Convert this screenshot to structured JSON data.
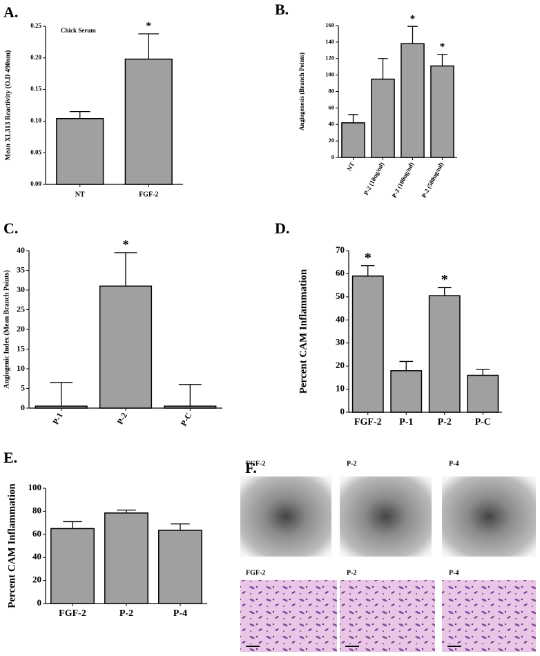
{
  "chart_data": [
    {
      "type": "bar",
      "panel": "A.",
      "note": "Chick Serum",
      "y_label": "Mean XL313 Reactivity (O.D 490nm)",
      "categories": [
        "NT",
        "FGF-2"
      ],
      "values": [
        0.104,
        0.198
      ],
      "errors": [
        0.011,
        0.04
      ],
      "annotations": [
        null,
        "*"
      ],
      "color": "#a0a0a0",
      "ylim": [
        0,
        0.25
      ],
      "yticks": [
        {
          "value": 0,
          "label": "0.00"
        },
        {
          "value": 0.05,
          "label": "0.05"
        },
        {
          "value": 0.1,
          "label": "0.10"
        },
        {
          "value": 0.15,
          "label": "0.15"
        },
        {
          "value": 0.2,
          "label": "0.20"
        },
        {
          "value": 0.25,
          "label": "0.25"
        }
      ]
    },
    {
      "type": "bar",
      "panel": "B.",
      "y_label": "Angiogenesis (Branch Points)",
      "categories": [
        "NT",
        "P-2 (10ng/ml)",
        "P-2 (100ng/ml)",
        "P-2 (500ng/ml)"
      ],
      "values": [
        42,
        95,
        138,
        111
      ],
      "errors": [
        10,
        25,
        21,
        14
      ],
      "annotations": [
        null,
        null,
        "*",
        "*"
      ],
      "color": "#a0a0a0",
      "ylim": [
        0,
        160
      ],
      "yticks": [
        0,
        20,
        40,
        60,
        80,
        100,
        120,
        140,
        160
      ]
    },
    {
      "type": "bar",
      "panel": "C.",
      "y_label": "Angiogenic Index (Mean Branch Points)",
      "categories": [
        "P-1",
        "P-2",
        "P-C"
      ],
      "values": [
        0.5,
        31,
        0.5
      ],
      "errors": [
        6,
        8.5,
        5.5
      ],
      "annotations": [
        null,
        "*",
        null
      ],
      "color": "#a0a0a0",
      "ylim": [
        0,
        40
      ],
      "yticks": [
        0,
        5,
        10,
        15,
        20,
        25,
        30,
        35,
        40
      ]
    },
    {
      "type": "bar",
      "panel": "D.",
      "y_label": "Percent CAM Inflammation",
      "categories": [
        "FGF-2",
        "P-1",
        "P-2",
        "P-C"
      ],
      "values": [
        59,
        18,
        50.5,
        16
      ],
      "errors": [
        4.5,
        4,
        3.5,
        2.5
      ],
      "annotations": [
        "*",
        null,
        "*",
        null
      ],
      "color": "#a0a0a0",
      "ylim": [
        0,
        70
      ],
      "yticks": [
        0,
        10,
        20,
        30,
        40,
        50,
        60,
        70
      ]
    },
    {
      "type": "bar",
      "panel": "E.",
      "y_label": "Percent CAM Inflammation",
      "categories": [
        "FGF-2",
        "P-2",
        "P-4"
      ],
      "values": [
        65,
        78.5,
        63.5
      ],
      "errors": [
        6,
        2.5,
        5.5
      ],
      "annotations": [
        null,
        null,
        null
      ],
      "color": "#a0a0a0",
      "ylim": [
        0,
        100
      ],
      "yticks": [
        0,
        20,
        40,
        60,
        80,
        100
      ]
    }
  ],
  "figure_f": {
    "panel": "F.",
    "top_labels": [
      "FGF-2",
      "P-2",
      "P-4"
    ],
    "bottom_labels": [
      "FGF-2",
      "P-2",
      "P-4"
    ]
  }
}
